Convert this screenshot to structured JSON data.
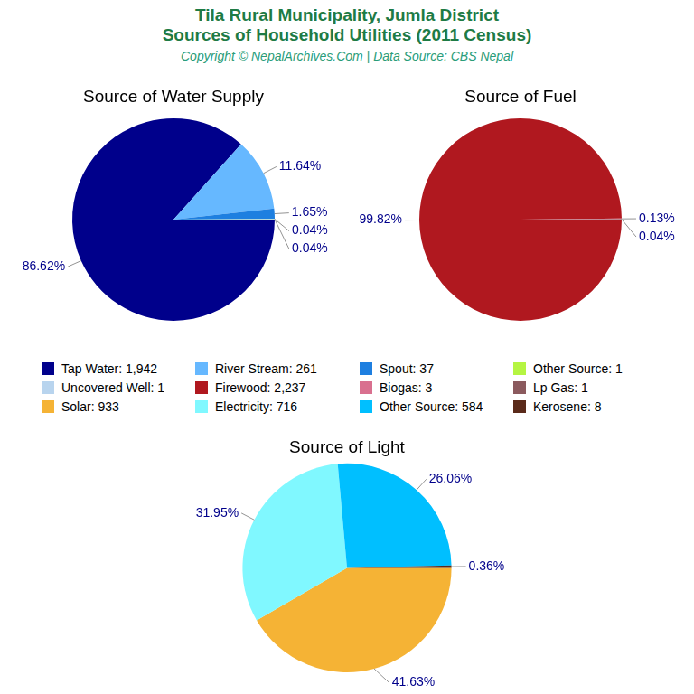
{
  "title": [
    "Tila Rural Municipality, Jumla District",
    "Sources of Household Utilities (2011 Census)"
  ],
  "subtitle": "Copyright © NepalArchives.Com | Data Source: CBS Nepal",
  "chart_data": [
    {
      "type": "pie",
      "title": "Source of Water Supply",
      "categories": [
        "Tap Water: 1,942",
        "River Stream: 261",
        "Spout: 37",
        "Other Source: 1",
        "Uncovered Well: 1"
      ],
      "values": [
        86.62,
        11.64,
        1.65,
        0.04,
        0.04
      ],
      "value_labels": [
        "86.62%",
        "11.64%",
        "1.65%",
        "0.04%",
        "0.04%"
      ],
      "colors": [
        "#00008b",
        "#66b8ff",
        "#1e7fe0",
        "#b5f542",
        "#b8d4ee"
      ],
      "data_labels": true
    },
    {
      "type": "pie",
      "title": "Source of Fuel",
      "categories": [
        "Firewood: 2,237",
        "Biogas: 3",
        "Lp Gas: 1"
      ],
      "values": [
        99.82,
        0.13,
        0.04
      ],
      "value_labels": [
        "99.82%",
        "0.13%",
        "0.04%"
      ],
      "colors": [
        "#b0181f",
        "#d9708f",
        "#8b5a5e"
      ],
      "data_labels": true
    },
    {
      "type": "pie",
      "title": "Source of Light",
      "categories": [
        "Solar: 933",
        "Electricity: 716",
        "Other Source: 584",
        "Kerosene: 8"
      ],
      "values": [
        41.63,
        31.95,
        26.06,
        0.36
      ],
      "value_labels": [
        "41.63%",
        "31.95%",
        "26.06%",
        "0.36%"
      ],
      "colors": [
        "#f5b335",
        "#80f8ff",
        "#00bfff",
        "#5a2a1a"
      ],
      "data_labels": true
    }
  ]
}
